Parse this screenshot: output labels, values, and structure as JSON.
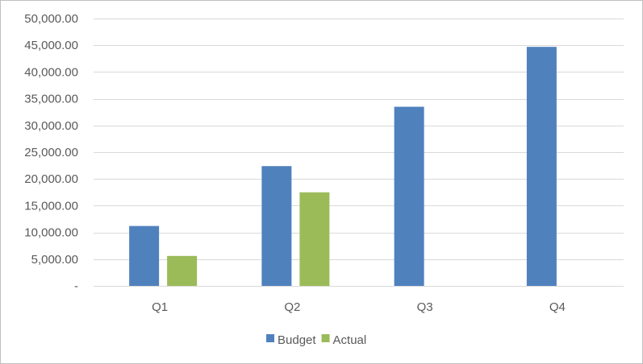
{
  "chart_data": {
    "type": "bar",
    "categories": [
      "Q1",
      "Q2",
      "Q3",
      "Q4"
    ],
    "series": [
      {
        "name": "Budget",
        "values": [
          11200,
          22400,
          33500,
          44700
        ],
        "color": "#4f81bd"
      },
      {
        "name": "Actual",
        "values": [
          5600,
          17500,
          null,
          null
        ],
        "color": "#9bbb59"
      }
    ],
    "y_ticks": [
      0,
      5000,
      10000,
      15000,
      20000,
      25000,
      30000,
      35000,
      40000,
      45000,
      50000
    ],
    "y_tick_labels": [
      "-",
      "5,000.00",
      "10,000.00",
      "15,000.00",
      "20,000.00",
      "25,000.00",
      "30,000.00",
      "35,000.00",
      "40,000.00",
      "45,000.00",
      "50,000.00"
    ],
    "ylim": [
      0,
      50000
    ],
    "grid": true,
    "gridline_color": "#d9d9d9",
    "legend_position": "bottom",
    "title": "",
    "xlabel": "",
    "ylabel": ""
  }
}
